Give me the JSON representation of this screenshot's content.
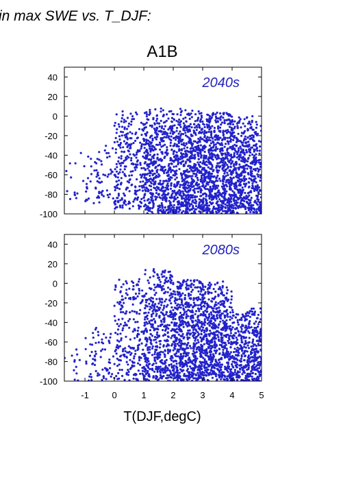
{
  "header": {
    "title_fragment": "in max SWE vs. T_DJF:",
    "scenario": "A1B"
  },
  "colors": {
    "points": "#2222cc",
    "period_label": "#2222bb",
    "axis": "#000000"
  },
  "chart_data": [
    {
      "type": "scatter",
      "period_label": "2040s",
      "xlabel": "T(DJF,degC)",
      "ylabel": "",
      "xlim": [
        -1.7,
        5.0
      ],
      "ylim": [
        -100,
        50
      ],
      "yticks": [
        40,
        20,
        0,
        -20,
        -40,
        -60,
        -80,
        -100
      ],
      "xticks": [
        -1,
        0,
        1,
        2,
        3,
        4,
        5
      ],
      "xtick_labels_shown": false,
      "density": [
        {
          "x_range": [
            -1.7,
            -1.0
          ],
          "y_range": [
            -90,
            -35
          ],
          "count": 14
        },
        {
          "x_range": [
            -1.0,
            0.0
          ],
          "y_range": [
            -90,
            -25
          ],
          "count": 70
        },
        {
          "x_range": [
            0.0,
            1.0
          ],
          "y_range": [
            -95,
            5
          ],
          "count": 260
        },
        {
          "x_range": [
            1.0,
            2.0
          ],
          "y_range": [
            -100,
            8
          ],
          "count": 520
        },
        {
          "x_range": [
            2.0,
            3.0
          ],
          "y_range": [
            -100,
            8
          ],
          "count": 650
        },
        {
          "x_range": [
            3.0,
            4.0
          ],
          "y_range": [
            -100,
            5
          ],
          "count": 700
        },
        {
          "x_range": [
            4.0,
            5.0
          ],
          "y_range": [
            -100,
            0
          ],
          "count": 560
        }
      ]
    },
    {
      "type": "scatter",
      "period_label": "2080s",
      "xlabel": "T(DJF,degC)",
      "ylabel": "",
      "xlim": [
        -1.7,
        5.0
      ],
      "ylim": [
        -100,
        50
      ],
      "yticks": [
        40,
        20,
        0,
        -20,
        -40,
        -60,
        -80,
        -100
      ],
      "xticks": [
        -1,
        0,
        1,
        2,
        3,
        4,
        5
      ],
      "xtick_labels_shown": true,
      "density": [
        {
          "x_range": [
            -1.7,
            -1.0
          ],
          "y_range": [
            -100,
            -60
          ],
          "count": 12
        },
        {
          "x_range": [
            -1.0,
            0.0
          ],
          "y_range": [
            -100,
            -45
          ],
          "count": 70
        },
        {
          "x_range": [
            0.0,
            1.0
          ],
          "y_range": [
            -100,
            5
          ],
          "count": 220
        },
        {
          "x_range": [
            1.0,
            2.0
          ],
          "y_range": [
            -100,
            15
          ],
          "count": 480
        },
        {
          "x_range": [
            2.0,
            3.0
          ],
          "y_range": [
            -100,
            5
          ],
          "count": 640
        },
        {
          "x_range": [
            3.0,
            4.0
          ],
          "y_range": [
            -100,
            2
          ],
          "count": 620
        },
        {
          "x_range": [
            4.0,
            5.0
          ],
          "y_range": [
            -100,
            -25
          ],
          "count": 420
        }
      ]
    }
  ]
}
